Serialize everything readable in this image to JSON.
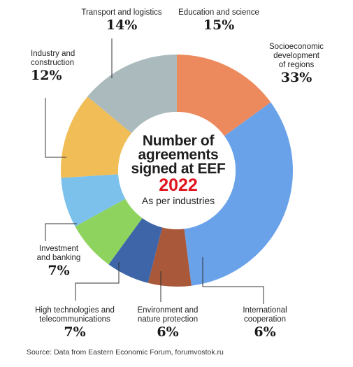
{
  "chart_data": {
    "type": "pie",
    "title_lines": [
      "Number of",
      "agreements",
      "signed at EEF"
    ],
    "year": "2022",
    "subtitle": "As per industries",
    "source": "Source: Data from Eastern Economic Forum, forumvostok.ru",
    "slices": [
      {
        "label": "Education and science",
        "value": 15,
        "pct_label": "15%",
        "color": "#ec8a5e"
      },
      {
        "label": "Socioeconomic\ndevelopment\nof regions",
        "value": 33,
        "pct_label": "33%",
        "color": "#6aa2ea"
      },
      {
        "label": "International\ncooperation",
        "value": 6,
        "pct_label": "6%",
        "color": "#a9583a"
      },
      {
        "label": "Environment and\nnature protection",
        "value": 6,
        "pct_label": "6%",
        "color": "#3d65a8"
      },
      {
        "label": "High technologies and\ntelecommunications",
        "value": 7,
        "pct_label": "7%",
        "color": "#8ed35e"
      },
      {
        "label": "Investment\nand banking",
        "value": 7,
        "pct_label": "7%",
        "color": "#7cc1ec"
      },
      {
        "label": "Industry and\nconstruction",
        "value": 12,
        "pct_label": "12%",
        "color": "#f0bd56"
      },
      {
        "label": "Transport and logistics",
        "value": 14,
        "pct_label": "14%",
        "color": "#abbbbd"
      }
    ]
  }
}
